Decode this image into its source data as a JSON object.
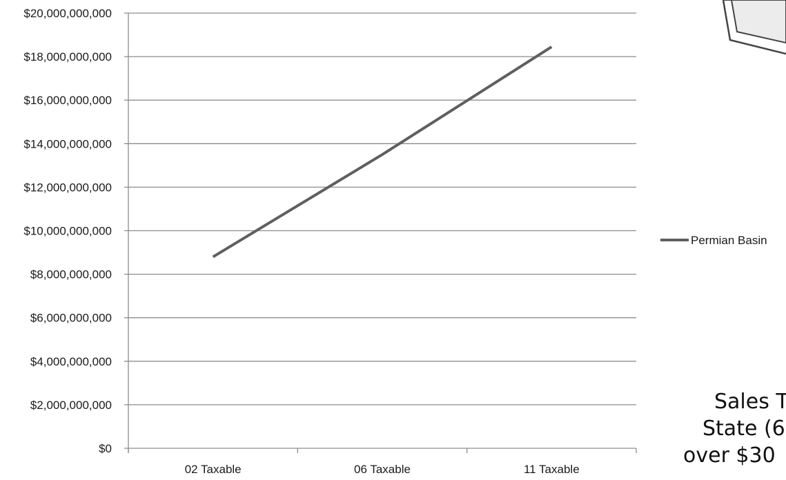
{
  "chart_data": {
    "type": "line",
    "categories": [
      "02 Taxable",
      "06 Taxable",
      "11 Taxable"
    ],
    "series": [
      {
        "name": "Permian Basin",
        "values": [
          8800000000,
          13500000000,
          18450000000
        ],
        "color": "#5f5f5f"
      }
    ],
    "ylim": [
      0,
      20000000000
    ],
    "yticks": [
      "$0",
      "$2,000,000,000",
      "$4,000,000,000",
      "$6,000,000,000",
      "$8,000,000,000",
      "$10,000,000,000",
      "$12,000,000,000",
      "$14,000,000,000",
      "$16,000,000,000",
      "$18,000,000,000",
      "$20,000,000,000"
    ],
    "grid": true,
    "legend_position": "right"
  },
  "side_text": {
    "line1": "Sales T",
    "line2": "State (6",
    "line3": "over $30"
  },
  "colors": {
    "gridline": "#8c8c8c",
    "axis": "#8c8c8c",
    "decor_frame": "#444444",
    "decor_fill": "#ececec"
  },
  "icons": {
    "frame": "partial-picture-frame-icon"
  }
}
